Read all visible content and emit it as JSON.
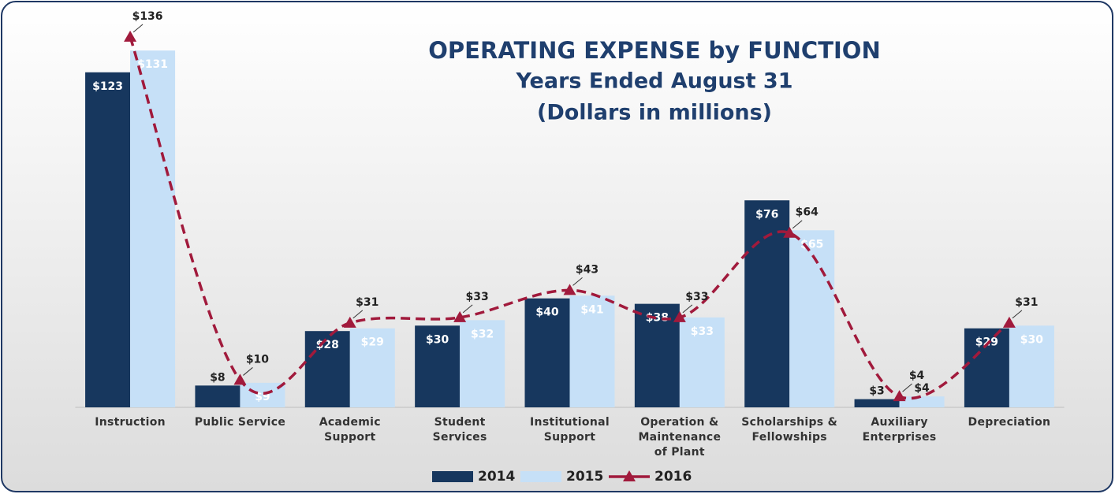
{
  "chart_data": {
    "type": "bar-line",
    "title": "OPERATING EXPENSE by FUNCTION",
    "subtitle": "Years Ended August 31",
    "units": "(Dollars in millions)",
    "categories": [
      "Instruction",
      "Public Service",
      "Academic Support",
      "Student Services",
      "Institutional Support",
      "Operation & Maintenance of Plant",
      "Scholarships & Fellowships",
      "Auxiliary Enterprises",
      "Depreciation"
    ],
    "series": [
      {
        "name": "2014",
        "type": "bar",
        "color": "#17375e",
        "values": [
          123,
          8,
          28,
          30,
          40,
          38,
          76,
          3,
          29
        ],
        "value_labels": [
          "$123",
          "$8",
          "$28",
          "$30",
          "$40",
          "$38",
          "$76",
          "$3",
          "$29"
        ]
      },
      {
        "name": "2015",
        "type": "bar",
        "color": "#c6e0f7",
        "values": [
          131,
          9,
          29,
          32,
          41,
          33,
          65,
          4,
          30
        ],
        "value_labels": [
          "$131",
          "$9",
          "$29",
          "$32",
          "$41",
          "$33",
          "$65",
          "$4",
          "$30"
        ]
      },
      {
        "name": "2016",
        "type": "line",
        "color": "#a11a3c",
        "values": [
          136,
          10,
          31,
          33,
          43,
          33,
          64,
          4,
          31
        ],
        "value_labels": [
          "$136",
          "$10",
          "$31",
          "$33",
          "$43",
          "$33",
          "$64",
          "$4",
          "$31"
        ]
      }
    ],
    "ylim": [
      0,
      140
    ],
    "legend": "bottom"
  }
}
